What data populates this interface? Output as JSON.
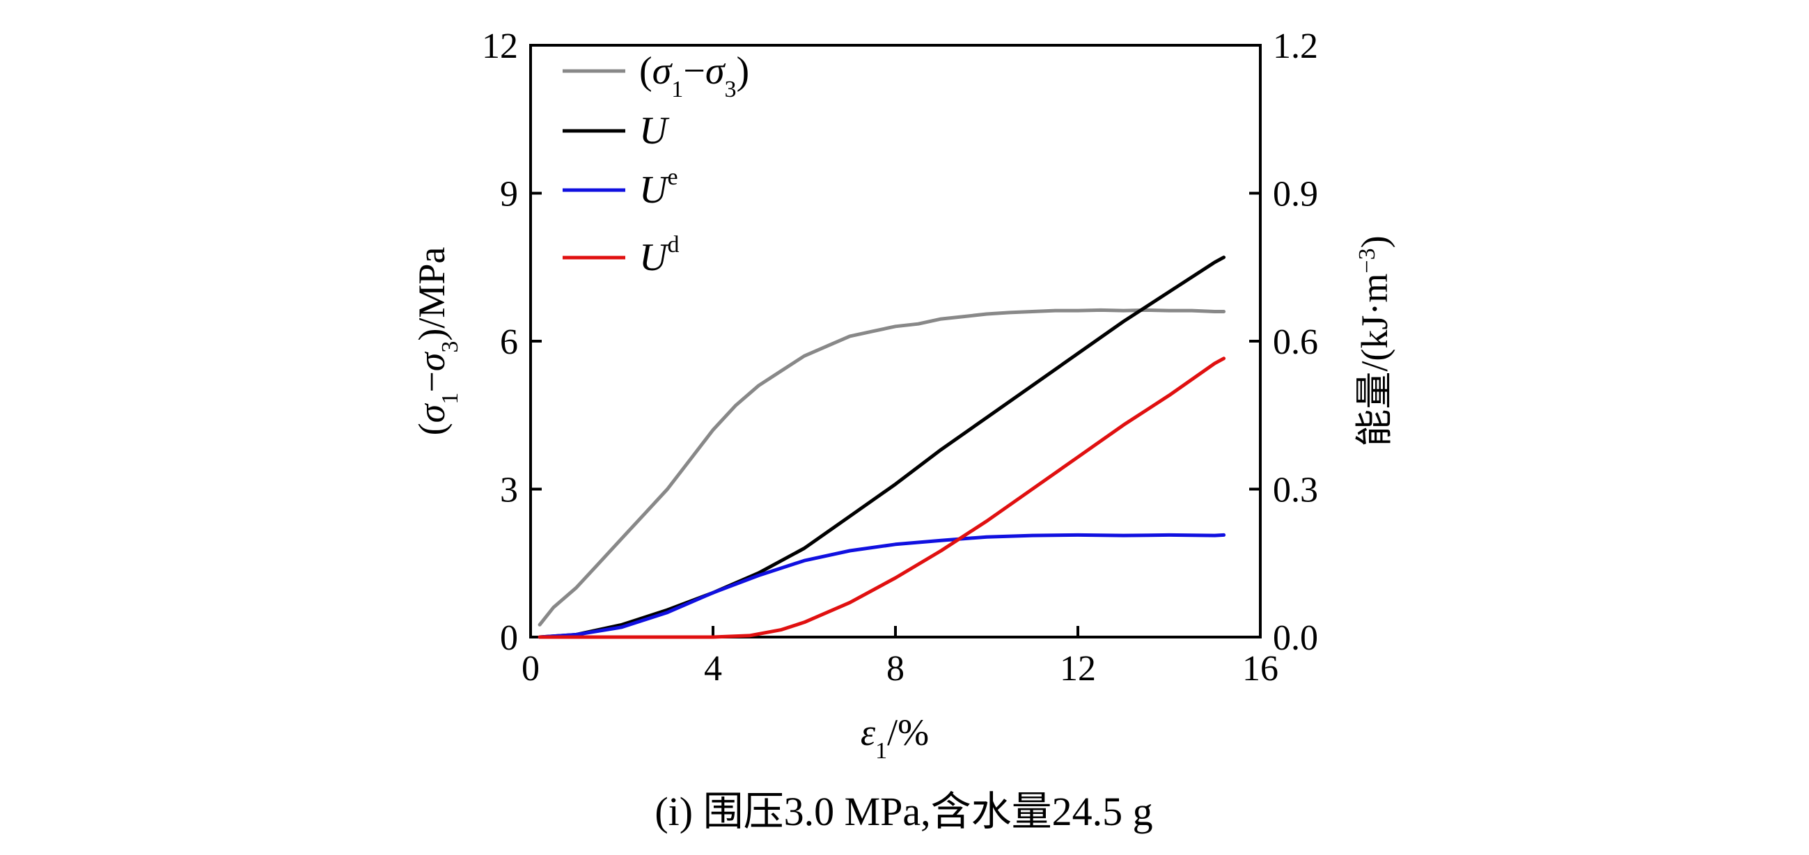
{
  "chart_data": {
    "type": "line",
    "caption": "(i) 围压3.0 MPa,含水量24.5 g",
    "xlabel_sym": "ε",
    "xlabel_sub": "1",
    "xlabel_unit": "/%",
    "ylabel_left": {
      "open": "(",
      "s1": "σ",
      "s1_sub": "1",
      "dash": "−",
      "s3": "σ",
      "s3_sub": "3",
      "close": ")/MPa"
    },
    "ylabel_right": {
      "prefix": "能量/(kJ·m",
      "sup": "−3",
      "suffix": ")"
    },
    "x_ticks": [
      "0",
      "4",
      "8",
      "12",
      "16"
    ],
    "y_left_ticks": [
      "0",
      "3",
      "6",
      "9",
      "12"
    ],
    "y_right_ticks": [
      "0.0",
      "0.3",
      "0.6",
      "0.9",
      "1.2"
    ],
    "xlim": [
      0,
      16
    ],
    "ylim_left": [
      0,
      12
    ],
    "ylim_right": [
      0,
      1.2
    ],
    "series": [
      {
        "name": "(σ1−σ3)",
        "legend": {
          "open": "(",
          "s1": "σ",
          "s1_sub": "1",
          "dash": "−",
          "s3": "σ",
          "s3_sub": "3",
          "close": ")"
        },
        "axis": "left",
        "color": "#888888",
        "x": [
          0.2,
          0.5,
          1.0,
          1.5,
          2.0,
          2.5,
          3.0,
          3.5,
          4.0,
          4.5,
          5.0,
          5.5,
          6.0,
          6.5,
          7.0,
          7.5,
          8.0,
          8.5,
          9.0,
          9.5,
          10.0,
          10.5,
          11.0,
          11.5,
          12.0,
          12.5,
          13.0,
          13.5,
          14.0,
          14.5,
          15.0,
          15.2
        ],
        "y": [
          0.25,
          0.6,
          1.0,
          1.5,
          2.0,
          2.5,
          3.0,
          3.6,
          4.2,
          4.7,
          5.1,
          5.4,
          5.7,
          5.9,
          6.1,
          6.2,
          6.3,
          6.35,
          6.45,
          6.5,
          6.55,
          6.58,
          6.6,
          6.62,
          6.62,
          6.63,
          6.62,
          6.63,
          6.62,
          6.62,
          6.6,
          6.6
        ]
      },
      {
        "name": "U",
        "legend": {
          "sym": "U",
          "sup": ""
        },
        "axis": "right",
        "color": "#000000",
        "x": [
          0.2,
          1.0,
          2.0,
          3.0,
          4.0,
          5.0,
          6.0,
          7.0,
          8.0,
          9.0,
          10.0,
          11.0,
          12.0,
          13.0,
          14.0,
          15.0,
          15.2
        ],
        "y": [
          0.0,
          0.005,
          0.025,
          0.055,
          0.09,
          0.13,
          0.18,
          0.245,
          0.31,
          0.38,
          0.445,
          0.51,
          0.575,
          0.64,
          0.7,
          0.76,
          0.77
        ]
      },
      {
        "name": "Ue",
        "legend": {
          "sym": "U",
          "sup": "e"
        },
        "axis": "right",
        "color": "#1010e0",
        "x": [
          0.2,
          1.0,
          2.0,
          3.0,
          4.0,
          5.0,
          6.0,
          7.0,
          8.0,
          9.0,
          10.0,
          11.0,
          12.0,
          13.0,
          14.0,
          15.0,
          15.2
        ],
        "y": [
          0.0,
          0.005,
          0.02,
          0.05,
          0.09,
          0.125,
          0.155,
          0.175,
          0.188,
          0.196,
          0.203,
          0.206,
          0.207,
          0.206,
          0.207,
          0.206,
          0.207
        ]
      },
      {
        "name": "Ud",
        "legend": {
          "sym": "U",
          "sup": "d"
        },
        "axis": "right",
        "color": "#e01010",
        "x": [
          0.2,
          1.0,
          2.0,
          3.0,
          4.0,
          4.8,
          5.5,
          6.0,
          7.0,
          8.0,
          9.0,
          10.0,
          11.0,
          12.0,
          13.0,
          14.0,
          15.0,
          15.2
        ],
        "y": [
          0.0,
          0.0,
          0.0,
          0.0,
          0.0,
          0.003,
          0.015,
          0.03,
          0.07,
          0.12,
          0.175,
          0.235,
          0.3,
          0.365,
          0.43,
          0.49,
          0.555,
          0.565
        ]
      }
    ]
  }
}
